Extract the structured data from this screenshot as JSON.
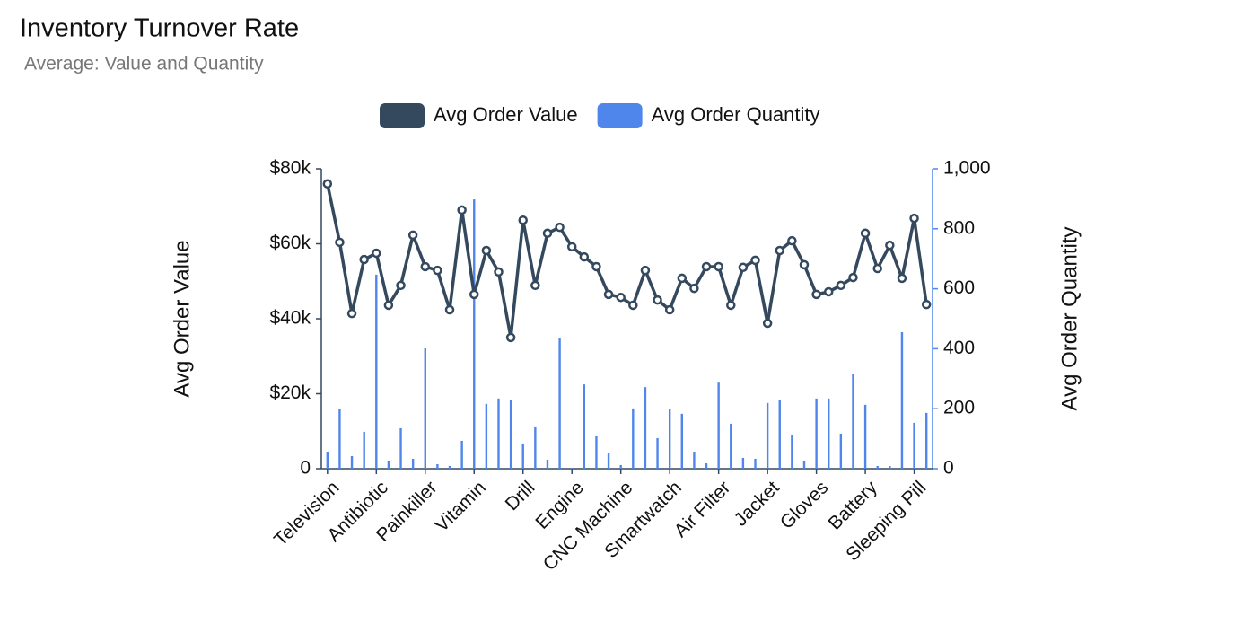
{
  "chart_data": {
    "type": "bar-line",
    "title": "Inventory Turnover Rate",
    "subtitle": "Average: Value and Quantity",
    "y_label": "Avg Order Value",
    "y2_label": "Avg Order Quantity",
    "categories": [
      "Television",
      null,
      null,
      null,
      "Antibiotic",
      null,
      null,
      null,
      "Painkiller",
      null,
      null,
      null,
      "Vitamin",
      null,
      null,
      null,
      "Drill",
      null,
      null,
      null,
      "Engine",
      null,
      null,
      null,
      "CNC Machine",
      null,
      null,
      null,
      "Smartwatch",
      null,
      null,
      null,
      "Air Filter",
      null,
      null,
      null,
      "Jacket",
      null,
      null,
      null,
      "Gloves",
      null,
      null,
      null,
      "Battery",
      null,
      null,
      null,
      "Sleeping Pill",
      null
    ],
    "series": [
      {
        "name": "Avg Order Value",
        "type": "line",
        "color": "#34495e",
        "axis": "y",
        "values": [
          76000,
          60400,
          41400,
          55800,
          57500,
          43600,
          48900,
          62300,
          53900,
          52900,
          42400,
          69000,
          46500,
          58200,
          52500,
          35000,
          66300,
          48900,
          62800,
          64400,
          59200,
          56500,
          53900,
          46500,
          45700,
          43600,
          52900,
          45000,
          42400,
          50800,
          48100,
          53900,
          53900,
          43600,
          53700,
          55600,
          38800,
          58200,
          60800,
          54400,
          46500,
          47200,
          48900,
          51000,
          62800,
          53400,
          59600,
          50800,
          66800,
          43800
        ]
      },
      {
        "name": "Avg Order Quantity",
        "type": "bar",
        "color": "#4f86ec",
        "axis": "y2",
        "values": [
          57,
          198,
          42,
          123,
          647,
          27,
          135,
          33,
          401,
          15,
          9,
          93,
          898,
          216,
          234,
          228,
          84,
          138,
          30,
          434,
          3,
          281,
          108,
          51,
          12,
          201,
          272,
          102,
          198,
          183,
          57,
          18,
          287,
          150,
          36,
          33,
          219,
          228,
          111,
          27,
          234,
          234,
          117,
          317,
          213,
          9,
          9,
          455,
          153,
          186
        ]
      }
    ],
    "ylim": [
      0,
      80000
    ],
    "yticks": [
      0,
      {
        "value": 20000,
        "label": "$20k"
      },
      {
        "value": 40000,
        "label": "$40k"
      },
      {
        "value": 60000,
        "label": "$60k"
      },
      {
        "value": 80000,
        "label": "$80k"
      }
    ],
    "y2lim": [
      0,
      1000
    ],
    "y2ticks": [
      0,
      200,
      400,
      600,
      800,
      {
        "value": 1000,
        "label": "1,000"
      }
    ],
    "legend": "top"
  }
}
